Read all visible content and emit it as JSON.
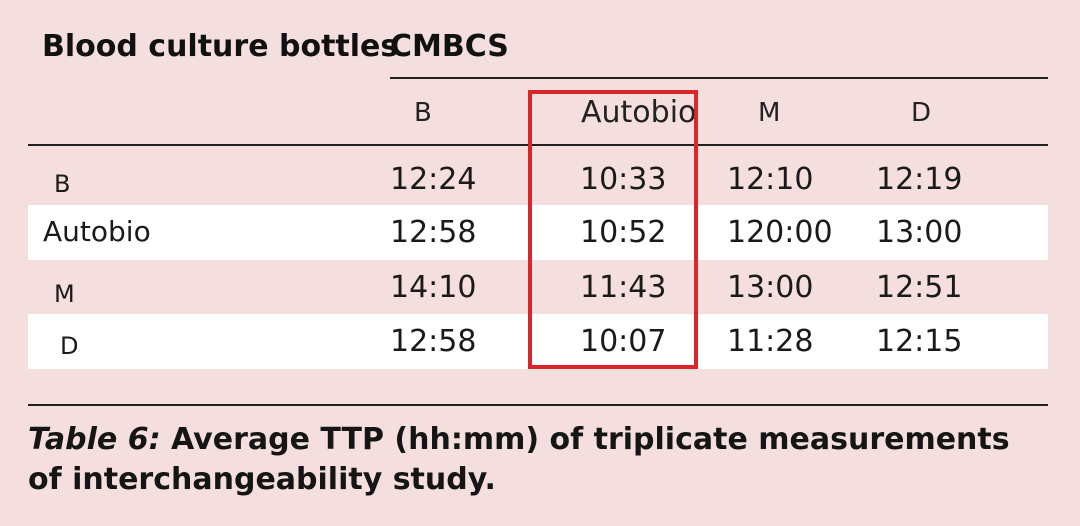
{
  "table": {
    "corner_header": "Blood culture bottles",
    "group_header": "CMBCS",
    "columns": [
      "B",
      "Autobio",
      "M",
      "D"
    ],
    "rows": [
      {
        "label": "B",
        "values": [
          "12:24",
          "10:33",
          "12:10",
          "12:19"
        ]
      },
      {
        "label": "Autobio",
        "values": [
          "12:58",
          "10:52",
          "120:00",
          "13:00"
        ]
      },
      {
        "label": "M",
        "values": [
          "14:10",
          "11:43",
          "13:00",
          "12:51"
        ]
      },
      {
        "label": "D",
        "values": [
          "12:58",
          "10:07",
          "11:28",
          "12:15"
        ]
      }
    ],
    "highlighted_column": "Autobio",
    "highlight_color": "#d9262a"
  },
  "caption": {
    "label": "Table 6:",
    "text": " Average TTP (hh:mm) of triplicate measurements of interchangeability study."
  },
  "colors": {
    "background": "#f4dfde",
    "stripe": "#ffffff"
  }
}
